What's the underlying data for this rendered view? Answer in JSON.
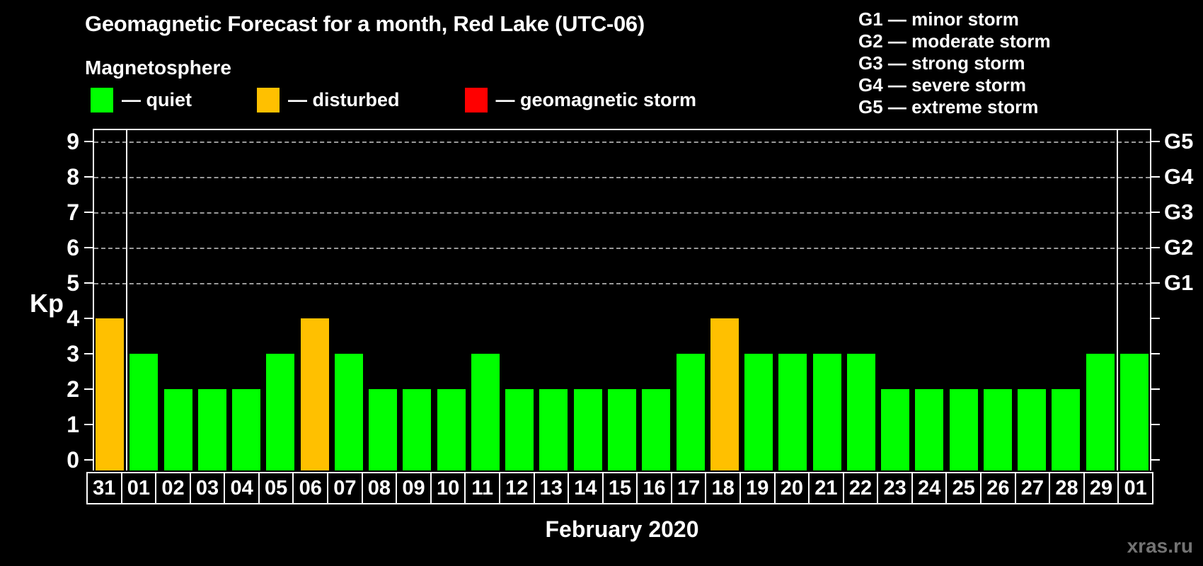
{
  "title": "Geomagnetic Forecast for a month, Red Lake (UTC-06)",
  "subtitle": "Magnetosphere",
  "legend": {
    "items": [
      {
        "name": "quiet",
        "label": "— quiet",
        "color": "#00ff00"
      },
      {
        "name": "disturbed",
        "label": "— disturbed",
        "color": "#ffc000"
      },
      {
        "name": "geomagnetic-storm",
        "label": "— geomagnetic storm",
        "color": "#ff0000"
      }
    ]
  },
  "storm_scale_legend": [
    "G1 — minor storm",
    "G2 — moderate storm",
    "G3 — strong storm",
    "G4 — severe storm",
    "G5 — extreme storm"
  ],
  "chart_data": {
    "type": "bar",
    "title": "Geomagnetic Forecast for a month, Red Lake (UTC-06)",
    "xlabel": "February 2020",
    "ylabel": "Kp",
    "ylim": [
      0,
      9.4
    ],
    "y_ticks": [
      0,
      1,
      2,
      3,
      4,
      5,
      6,
      7,
      8,
      9
    ],
    "grid": "dashed horizontal at Kp 5-9 only",
    "legend_position": "top-left",
    "categories": [
      "31",
      "01",
      "02",
      "03",
      "04",
      "05",
      "06",
      "07",
      "08",
      "09",
      "10",
      "11",
      "12",
      "13",
      "14",
      "15",
      "16",
      "17",
      "18",
      "19",
      "20",
      "21",
      "22",
      "23",
      "24",
      "25",
      "26",
      "27",
      "28",
      "29",
      "01"
    ],
    "values": [
      4,
      3,
      2,
      2,
      2,
      3,
      4,
      3,
      2,
      2,
      2,
      3,
      2,
      2,
      2,
      2,
      2,
      3,
      4,
      3,
      3,
      3,
      3,
      2,
      2,
      2,
      2,
      2,
      2,
      3,
      3
    ],
    "states": [
      "disturbed",
      "quiet",
      "quiet",
      "quiet",
      "quiet",
      "quiet",
      "disturbed",
      "quiet",
      "quiet",
      "quiet",
      "quiet",
      "quiet",
      "quiet",
      "quiet",
      "quiet",
      "quiet",
      "quiet",
      "quiet",
      "disturbed",
      "quiet",
      "quiet",
      "quiet",
      "quiet",
      "quiet",
      "quiet",
      "quiet",
      "quiet",
      "quiet",
      "quiet",
      "quiet",
      "quiet"
    ],
    "state_colors": {
      "quiet": "#00ff00",
      "disturbed": "#ffc000",
      "storm": "#ff0000"
    },
    "right_axis_labels": [
      {
        "kp": 5,
        "label": "G1"
      },
      {
        "kp": 6,
        "label": "G2"
      },
      {
        "kp": 7,
        "label": "G3"
      },
      {
        "kp": 8,
        "label": "G4"
      },
      {
        "kp": 9,
        "label": "G5"
      }
    ],
    "gridline_kp": [
      5,
      6,
      7,
      8,
      9
    ],
    "month_separators_after_index": [
      0,
      29
    ]
  },
  "footer": {
    "month_label": "February 2020",
    "watermark": "xras.ru"
  }
}
